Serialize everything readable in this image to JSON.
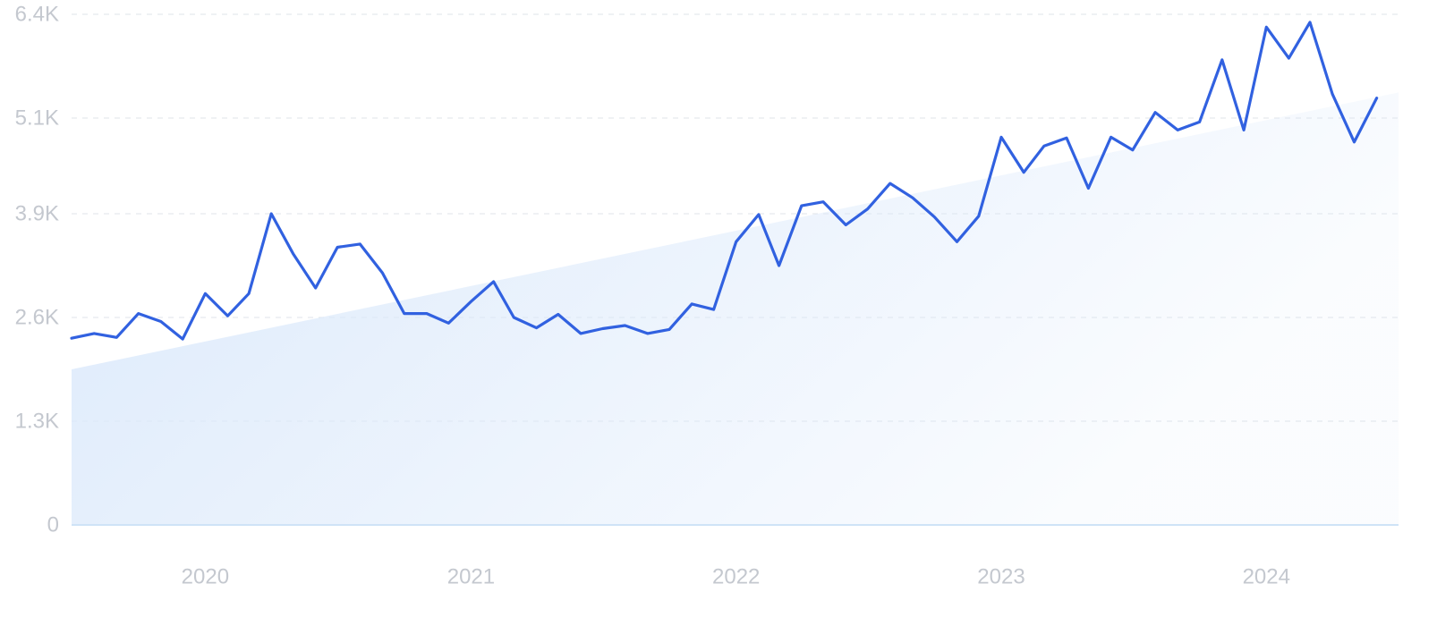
{
  "chart_data": {
    "type": "line",
    "title": "",
    "xlabel": "",
    "ylabel": "",
    "y_ticks": [
      {
        "value": 0,
        "label": "0"
      },
      {
        "value": 1300,
        "label": "1.3K"
      },
      {
        "value": 2600,
        "label": "2.6K"
      },
      {
        "value": 3900,
        "label": "3.9K"
      },
      {
        "value": 5100,
        "label": "5.1K"
      },
      {
        "value": 6400,
        "label": "6.4K"
      }
    ],
    "x_ticks": [
      {
        "value": "2020-01-01",
        "label": "2020"
      },
      {
        "value": "2021-01-01",
        "label": "2021"
      },
      {
        "value": "2022-01-01",
        "label": "2022"
      },
      {
        "value": "2023-01-01",
        "label": "2023"
      },
      {
        "value": "2024-01-01",
        "label": "2024"
      }
    ],
    "xlim": [
      "2019-07-01",
      "2024-07-01"
    ],
    "ylim": [
      0,
      6400
    ],
    "grid": true,
    "legend": "none",
    "line_color": "#3161e0",
    "trend_fill_color": "#dbe9fb",
    "trend": {
      "start": {
        "x": "2019-07-01",
        "y": 1950
      },
      "end": {
        "x": "2024-07-01",
        "y": 5420
      }
    },
    "series": [
      {
        "x": [
          "2019-07-01",
          "2019-08-01",
          "2019-09-01",
          "2019-10-01",
          "2019-11-01",
          "2019-12-01",
          "2020-01-01",
          "2020-02-01",
          "2020-03-01",
          "2020-04-01",
          "2020-05-01",
          "2020-06-01",
          "2020-07-01",
          "2020-08-01",
          "2020-09-01",
          "2020-10-01",
          "2020-11-01",
          "2020-12-01",
          "2021-01-01",
          "2021-02-01",
          "2021-03-01",
          "2021-04-01",
          "2021-05-01",
          "2021-06-01",
          "2021-07-01",
          "2021-08-01",
          "2021-09-01",
          "2021-10-01",
          "2021-11-01",
          "2021-12-01",
          "2022-01-01",
          "2022-02-01",
          "2022-03-01",
          "2022-04-01",
          "2022-05-01",
          "2022-06-01",
          "2022-07-01",
          "2022-08-01",
          "2022-09-01",
          "2022-10-01",
          "2022-11-01",
          "2022-12-01",
          "2023-01-01",
          "2023-02-01",
          "2023-03-01",
          "2023-04-01",
          "2023-05-01",
          "2023-06-01",
          "2023-07-01",
          "2023-08-01",
          "2023-09-01",
          "2023-10-01",
          "2023-11-01",
          "2023-12-01",
          "2024-01-01",
          "2024-02-01",
          "2024-03-01",
          "2024-04-01",
          "2024-05-01",
          "2024-06-01"
        ],
        "values": [
          2340,
          2400,
          2350,
          2650,
          2550,
          2330,
          2900,
          2620,
          2900,
          3900,
          3400,
          2970,
          3480,
          3520,
          3160,
          2650,
          2650,
          2530,
          2800,
          3050,
          2600,
          2470,
          2640,
          2400,
          2460,
          2500,
          2400,
          2450,
          2770,
          2700,
          3550,
          3890,
          3250,
          4000,
          4050,
          3760,
          3960,
          4280,
          4100,
          3860,
          3550,
          3870,
          4860,
          4420,
          4750,
          4850,
          4220,
          4860,
          4700,
          5170,
          4950,
          5050,
          5830,
          4950,
          6240,
          5850,
          6300,
          5400,
          4800,
          5350
        ]
      }
    ]
  }
}
